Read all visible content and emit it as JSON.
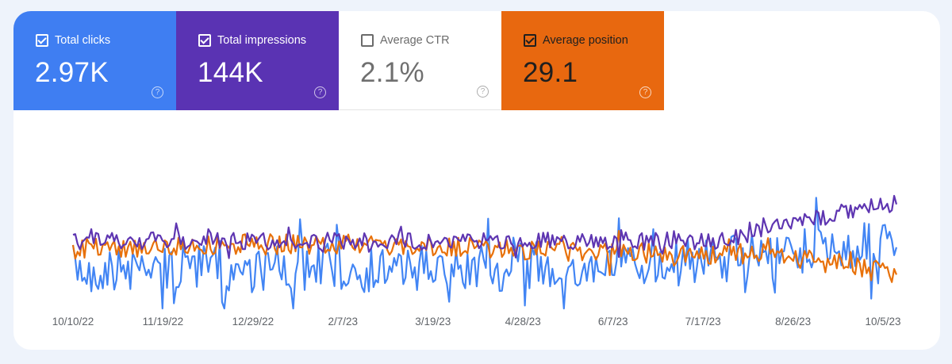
{
  "metrics": {
    "clicks": {
      "label": "Total clicks",
      "value": "2.97K",
      "checked": true,
      "color": "#3f7ef2"
    },
    "impressions": {
      "label": "Total impressions",
      "value": "144K",
      "checked": true,
      "color": "#5a33b3"
    },
    "ctr": {
      "label": "Average CTR",
      "value": "2.1%",
      "checked": false,
      "color": "#ffffff"
    },
    "position": {
      "label": "Average position",
      "value": "29.1",
      "checked": true,
      "color": "#e8680f"
    },
    "help_icon": "?"
  },
  "chart_data": {
    "type": "line",
    "x_tick_labels": [
      "10/10/22",
      "11/19/22",
      "12/29/22",
      "2/7/23",
      "3/19/23",
      "4/28/23",
      "6/7/23",
      "7/17/23",
      "8/26/23",
      "10/5/23"
    ],
    "series": [
      {
        "name": "Total clicks",
        "color": "#4285f4"
      },
      {
        "name": "Total impressions",
        "color": "#5e35b1"
      },
      {
        "name": "Average position",
        "color": "#e8710a"
      }
    ],
    "grid": false
  }
}
